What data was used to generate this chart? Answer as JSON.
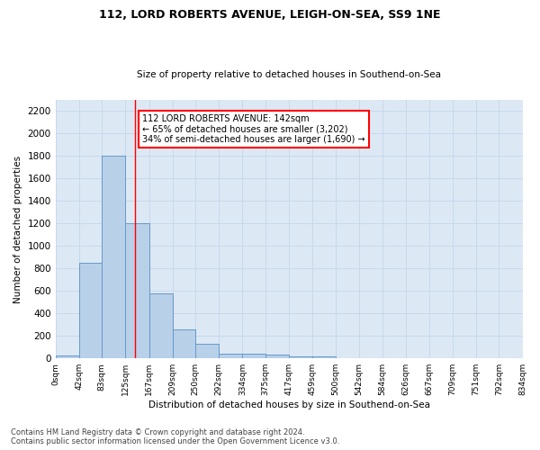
{
  "title_line1": "112, LORD ROBERTS AVENUE, LEIGH-ON-SEA, SS9 1NE",
  "title_line2": "Size of property relative to detached houses in Southend-on-Sea",
  "xlabel": "Distribution of detached houses by size in Southend-on-Sea",
  "ylabel": "Number of detached properties",
  "bar_edges": [
    0,
    42,
    83,
    125,
    167,
    209,
    250,
    292,
    334,
    375,
    417,
    459,
    500,
    542,
    584,
    626,
    667,
    709,
    751,
    792,
    834
  ],
  "bar_heights": [
    25,
    850,
    1800,
    1200,
    580,
    255,
    130,
    45,
    45,
    30,
    20,
    15,
    0,
    0,
    0,
    0,
    0,
    0,
    0,
    0
  ],
  "tick_labels": [
    "0sqm",
    "42sqm",
    "83sqm",
    "125sqm",
    "167sqm",
    "209sqm",
    "250sqm",
    "292sqm",
    "334sqm",
    "375sqm",
    "417sqm",
    "459sqm",
    "500sqm",
    "542sqm",
    "584sqm",
    "626sqm",
    "667sqm",
    "709sqm",
    "751sqm",
    "792sqm",
    "834sqm"
  ],
  "bar_color": "#b8d0e8",
  "bar_edge_color": "#6699cc",
  "grid_color": "#c8d8ec",
  "background_color": "#dce8f4",
  "annotation_box_text": "112 LORD ROBERTS AVENUE: 142sqm\n← 65% of detached houses are smaller (3,202)\n34% of semi-detached houses are larger (1,690) →",
  "red_line_x": 142,
  "yticks": [
    0,
    200,
    400,
    600,
    800,
    1000,
    1200,
    1400,
    1600,
    1800,
    2000,
    2200
  ],
  "ylim_max": 2300,
  "xlim_max": 834,
  "footer_line1": "Contains HM Land Registry data © Crown copyright and database right 2024.",
  "footer_line2": "Contains public sector information licensed under the Open Government Licence v3.0."
}
